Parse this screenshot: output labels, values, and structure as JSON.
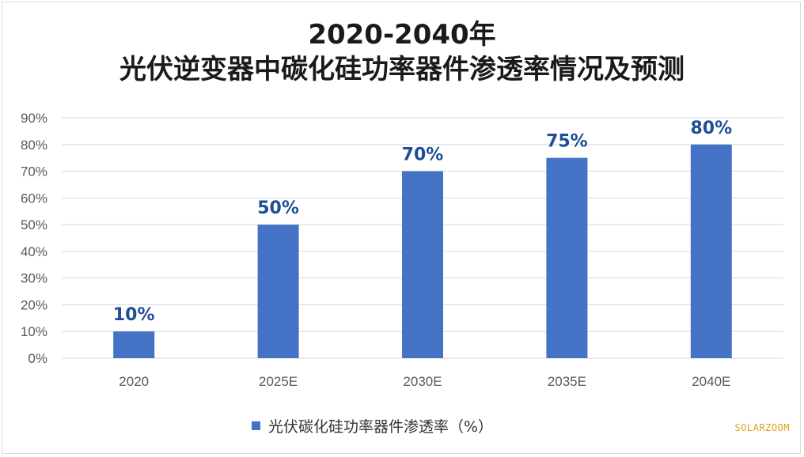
{
  "title_line1": "2020-2040年",
  "title_line2": "光伏逆变器中碳化硅功率器件渗透率情况及预测",
  "watermark": "SOLARZOOM",
  "colors": {
    "bar": "#4472c4",
    "data_label": "#1f4e96",
    "grid": "#d9d9d9",
    "axis_text": "#595959"
  },
  "chart_data": {
    "type": "bar",
    "categories": [
      "2020",
      "2025E",
      "2030E",
      "2035E",
      "2040E"
    ],
    "series": [
      {
        "name": "光伏碳化硅功率器件渗透率（%）",
        "values": [
          10,
          50,
          70,
          75,
          80
        ]
      }
    ],
    "data_labels": [
      "10%",
      "50%",
      "70%",
      "75%",
      "80%"
    ],
    "y_ticks": [
      "0%",
      "10%",
      "20%",
      "30%",
      "40%",
      "50%",
      "60%",
      "70%",
      "80%",
      "90%"
    ],
    "ylim": [
      0,
      90
    ],
    "grid": true,
    "legend_position": "bottom"
  }
}
